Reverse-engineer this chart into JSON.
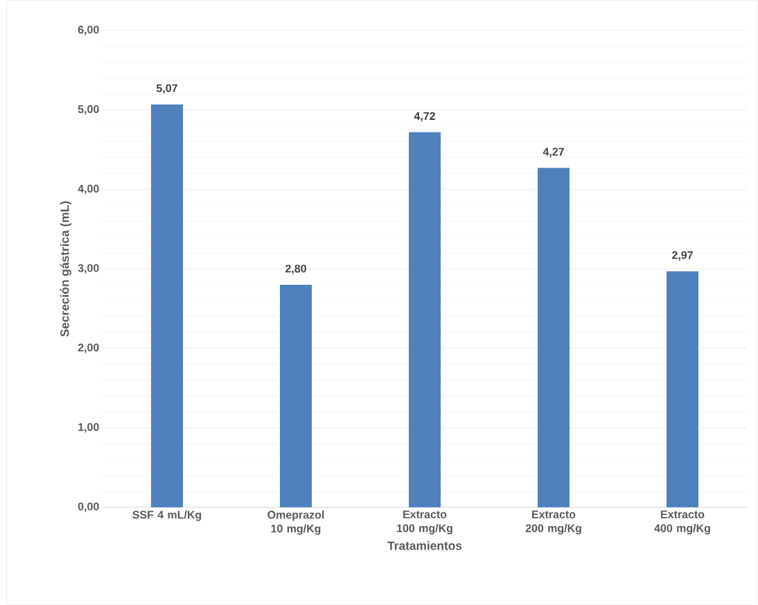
{
  "chart_data": {
    "type": "bar",
    "xlabel": "Tratamientos",
    "ylabel": "Secreción gástrica (mL)",
    "categories": [
      "SSF 4 mL/Kg",
      "Omeprazol 10 mg/Kg",
      "Extracto 100 mg/Kg",
      "Extracto 200 mg/Kg",
      "Extracto 400 mg/Kg"
    ],
    "values": [
      5.07,
      2.8,
      4.72,
      4.27,
      2.97
    ],
    "value_labels": [
      "5,07",
      "2,80",
      "4,72",
      "4,27",
      "2,97"
    ],
    "color": "#4f81bd",
    "ylim": [
      0,
      6
    ],
    "yticks": [
      {
        "value": 0,
        "label": "0,00"
      },
      {
        "value": 0.2,
        "label": null
      },
      {
        "value": 0.4,
        "label": null
      },
      {
        "value": 0.6,
        "label": null
      },
      {
        "value": 0.8,
        "label": null
      },
      {
        "value": 1,
        "label": "1,00"
      },
      {
        "value": 1.2,
        "label": null
      },
      {
        "value": 1.4,
        "label": null
      },
      {
        "value": 1.6,
        "label": null
      },
      {
        "value": 1.8,
        "label": null
      },
      {
        "value": 2,
        "label": "2,00"
      },
      {
        "value": 2.2,
        "label": null
      },
      {
        "value": 2.4,
        "label": null
      },
      {
        "value": 2.6,
        "label": null
      },
      {
        "value": 2.8,
        "label": null
      },
      {
        "value": 3,
        "label": "3,00"
      },
      {
        "value": 3.2,
        "label": null
      },
      {
        "value": 3.4,
        "label": null
      },
      {
        "value": 3.6,
        "label": null
      },
      {
        "value": 3.8,
        "label": null
      },
      {
        "value": 4,
        "label": "4,00"
      },
      {
        "value": 4.2,
        "label": null
      },
      {
        "value": 4.4,
        "label": null
      },
      {
        "value": 4.6,
        "label": null
      },
      {
        "value": 4.8,
        "label": null
      },
      {
        "value": 5,
        "label": "5,00"
      },
      {
        "value": 5.2,
        "label": null
      },
      {
        "value": 5.4,
        "label": null
      },
      {
        "value": 5.6,
        "label": null
      },
      {
        "value": 5.8,
        "label": null
      },
      {
        "value": 6,
        "label": "6,00"
      }
    ],
    "grid": "y"
  }
}
